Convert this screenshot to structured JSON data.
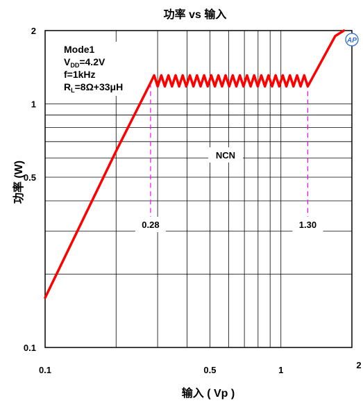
{
  "chart_data": {
    "type": "line",
    "title": "功率 vs 输入",
    "xlabel": "输入 ( Vp )",
    "ylabel": "功率 (W)",
    "x_scale": "log",
    "y_scale": "log",
    "xlim": [
      0.1,
      2
    ],
    "ylim": [
      0.1,
      2
    ],
    "grid": true,
    "x_ticks": [
      {
        "value": 0.1,
        "label": "0.1"
      },
      {
        "value": 0.5,
        "label": "0.5"
      },
      {
        "value": 1,
        "label": "1"
      },
      {
        "value": 2,
        "label": "2"
      }
    ],
    "y_ticks": [
      {
        "value": 0.1,
        "label": "0.1"
      },
      {
        "value": 0.5,
        "label": "0.5"
      },
      {
        "value": 1,
        "label": "1"
      },
      {
        "value": 2,
        "label": "2"
      }
    ],
    "series": [
      {
        "color": "#ff0000",
        "x": [
          0.1,
          0.2,
          0.28,
          0.3,
          0.5,
          0.8,
          1.2,
          1.3,
          1.7,
          1.85
        ],
        "y": [
          0.16,
          0.64,
          1.22,
          1.25,
          1.25,
          1.25,
          1.2,
          1.2,
          1.9,
          2.0
        ],
        "ripple_between": [
          0.28,
          1.3
        ]
      }
    ],
    "annotations": {
      "mode": "Mode1",
      "vdd": {
        "main": "V",
        "sub": "DD",
        "value": "=4.2V"
      },
      "freq": "f=1kHz",
      "load": {
        "main": "R",
        "sub": "L",
        "value": "=8Ω+33μH"
      },
      "region": "NCN",
      "markers": [
        {
          "x": 0.28,
          "label": "0.28"
        },
        {
          "x": 1.3,
          "label": "1.30"
        }
      ],
      "marker_color": "#ff00ff"
    },
    "logo_text": "AP"
  }
}
